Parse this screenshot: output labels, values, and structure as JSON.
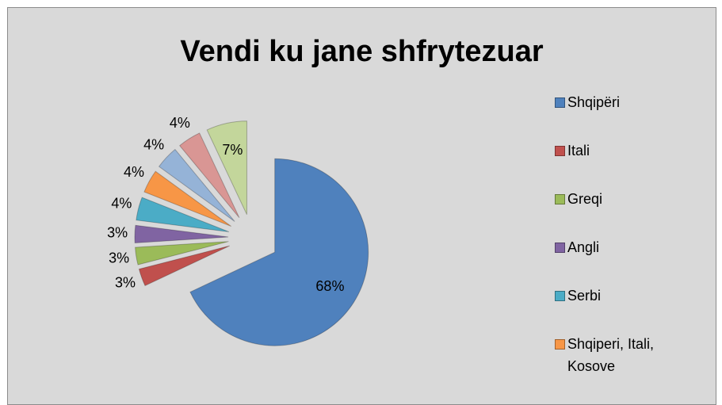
{
  "chart_data": {
    "type": "pie",
    "title": "Vendi ku jane shfrytezuar",
    "categories": [
      "Shqipëri",
      "Itali",
      "Greqi",
      "Angli",
      "Serbi",
      "Shqiperi, Itali, Kosove",
      null,
      null,
      null
    ],
    "values": [
      68,
      3,
      3,
      3,
      4,
      4,
      4,
      4,
      7
    ],
    "value_labels": [
      "68%",
      "3%",
      "3%",
      "3%",
      "4%",
      "4%",
      "4%",
      "4%",
      "7%"
    ],
    "colors": [
      "#4f81bd",
      "#c0504d",
      "#9bbb59",
      "#8064a2",
      "#4bacc6",
      "#f79646",
      "#95b3d7",
      "#d99694",
      "#c3d69b"
    ],
    "legend": "right"
  }
}
